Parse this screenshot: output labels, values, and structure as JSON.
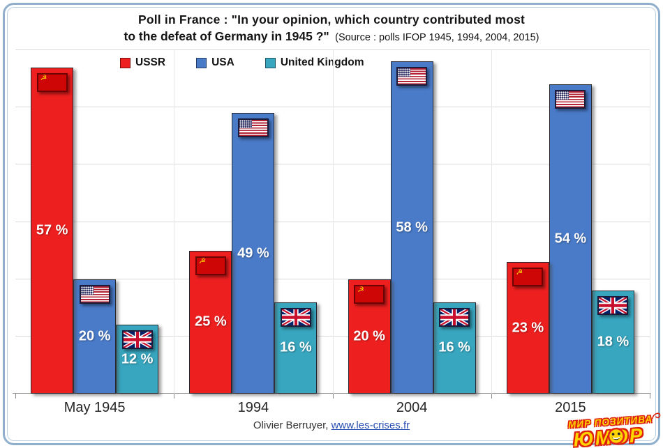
{
  "title": {
    "line1": "Poll in France : \"In your opinion, which country contributed most",
    "line2": "to the defeat of Germany in 1945 ?\"",
    "source": "(Source : polls IFOP 1945, 1994, 2004, 2015)"
  },
  "legend": [
    {
      "label": "USSR",
      "color": "#ee1f1f"
    },
    {
      "label": "USA",
      "color": "#4a7bc9"
    },
    {
      "label": "United Kingdom",
      "color": "#38a6bf"
    }
  ],
  "chart_data": {
    "type": "bar",
    "categories": [
      "May 1945",
      "1994",
      "2004",
      "2015"
    ],
    "series": [
      {
        "name": "USSR",
        "id": "ussr",
        "color": "#ee1f1f",
        "flag": "ussr-flag",
        "values": [
          57,
          25,
          20,
          23
        ],
        "labels": [
          "57 %",
          "25 %",
          "20 %",
          "23 %"
        ]
      },
      {
        "name": "USA",
        "id": "usa",
        "color": "#4a7bc9",
        "flag": "usa-flag",
        "values": [
          20,
          49,
          58,
          54
        ],
        "labels": [
          "20 %",
          "49 %",
          "58 %",
          "54 %"
        ]
      },
      {
        "name": "United Kingdom",
        "id": "uk",
        "color": "#38a6bf",
        "flag": "uk-flag",
        "values": [
          12,
          16,
          16,
          18
        ],
        "labels": [
          "12 %",
          "16 %",
          "16 %",
          "18 %"
        ]
      }
    ],
    "title": "Poll in France : \"In your opinion, which country contributed most to the defeat of Germany in 1945 ?\"",
    "xlabel": "",
    "ylabel": "",
    "ylim": [
      0,
      60
    ],
    "grid": true,
    "legend_position": "top"
  },
  "footer": {
    "credit": "Olivier Berruyer,",
    "link": "www.les-crises.fr"
  },
  "watermark": {
    "line1": "МИР ПОЗИТИВА",
    "line2": "ЮМОР"
  }
}
